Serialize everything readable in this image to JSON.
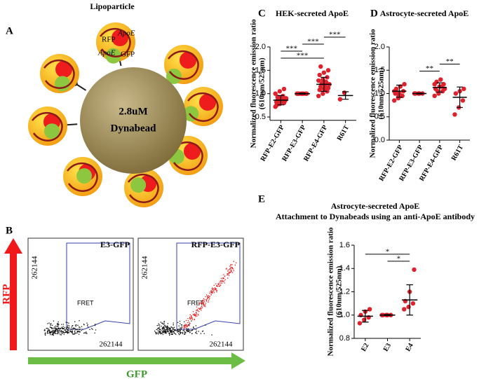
{
  "panel_labels": [
    "A",
    "B",
    "C",
    "D",
    "E"
  ],
  "diagram": {
    "title": "Lipoparticle",
    "bead_label": [
      "2.8uM",
      "Dynabead"
    ],
    "particle_labels": [
      "RFP",
      "ApoE",
      "ApoE",
      "GFP"
    ]
  },
  "flow": {
    "plots": [
      {
        "title": "E3-GFP",
        "gate": "FRET"
      },
      {
        "title": "RFP-E3-GFP",
        "gate": "FRET"
      }
    ],
    "axis_max": "262144",
    "y_axis": "RFP",
    "x_axis": "GFP"
  },
  "chart_data": [
    {
      "type": "strip",
      "title": "HEK-secreted ApoE",
      "ylabel": [
        "Normalized fluorescence emission ratio",
        "(610nm/525nm)"
      ],
      "categories": [
        "RFP-E2-GFP",
        "RFP-E3-GFP",
        "RFP-E4-GFP",
        "R61T"
      ],
      "points": [
        [
          0.72,
          0.78,
          0.8,
          0.82,
          0.84,
          0.85,
          0.86,
          0.88,
          0.9,
          0.92,
          0.95,
          1.0,
          1.05,
          1.1,
          0.75,
          0.83,
          0.87,
          0.93
        ],
        [
          1.0,
          1.0,
          1.0,
          1.0,
          1.0,
          1.0,
          1.0,
          1.0
        ],
        [
          0.95,
          1.0,
          1.05,
          1.08,
          1.1,
          1.12,
          1.15,
          1.18,
          1.2,
          1.22,
          1.25,
          1.28,
          1.3,
          1.35,
          1.4,
          1.45,
          1.5,
          1.58,
          1.1,
          1.2
        ],
        [
          0.88,
          1.02
        ]
      ],
      "means": [
        0.86,
        1.0,
        1.2,
        0.96
      ],
      "sd": [
        0.1,
        0.01,
        0.15,
        0.08
      ],
      "color": "#e0202a",
      "ylim": [
        0.43,
        2.0
      ],
      "yticks": [
        0.5,
        {
          "value": 1,
          "label": "1.0"
        },
        1.5,
        {
          "value": 2,
          "label": "2.0"
        }
      ],
      "annotations": [
        {
          "label": "***",
          "between": [
            "RFP-E2-GFP",
            "RFP-E4-GFP"
          ]
        },
        {
          "label": "***",
          "between": [
            "RFP-E2-GFP",
            "RFP-E3-GFP"
          ]
        },
        {
          "label": "***",
          "between": [
            "RFP-E3-GFP",
            "RFP-E4-GFP"
          ]
        },
        {
          "label": "***",
          "between": [
            "RFP-E4-GFP",
            "R61T"
          ]
        }
      ]
    },
    {
      "type": "strip",
      "title": "Astrocyte-secreted ApoE",
      "ylabel": [
        "Normalized fluorescence emission ratio",
        "(610nm/525nm)"
      ],
      "categories": [
        "RFP-E2-GFP",
        "RFP-E3-GFP",
        "RFP-E4-GFP",
        "R61T"
      ],
      "points": [
        [
          0.85,
          0.9,
          0.95,
          1.0,
          1.0,
          1.05,
          1.1,
          1.15,
          1.2,
          1.0,
          0.95,
          1.05,
          0.92
        ],
        [
          1.0,
          1.0,
          1.0,
          1.0,
          1.0
        ],
        [
          0.95,
          1.0,
          1.05,
          1.1,
          1.15,
          1.2,
          1.25,
          1.3,
          1.1,
          1.05,
          1.15,
          1.2
        ],
        [
          0.55,
          0.7,
          0.85,
          1.0,
          1.05,
          1.1
        ]
      ],
      "means": [
        1.05,
        1.0,
        1.13,
        0.92
      ],
      "sd": [
        0.13,
        0.01,
        0.1,
        0.22
      ],
      "color": "#e0202a",
      "ylim": [
        0,
        2.0
      ],
      "yticks": [
        {
          "value": 0,
          "label": "0.0"
        },
        0.5,
        {
          "value": 1,
          "label": "1.0"
        },
        1.5,
        {
          "value": 2,
          "label": "2.0"
        }
      ],
      "annotations": [
        {
          "label": "**",
          "between": [
            "RFP-E3-GFP",
            "RFP-E4-GFP"
          ]
        },
        {
          "label": "**",
          "between": [
            "RFP-E4-GFP",
            "R61T"
          ]
        }
      ]
    },
    {
      "type": "strip",
      "title": "Astrocyte-secreted ApoE",
      "subtitle": "Attachment to Dynabeads using an anti-ApoE antibody",
      "ylabel": [
        "Normalized fluorescence emission ratio",
        "(610nm/525nm)"
      ],
      "categories": [
        "E2",
        "E3",
        "E4"
      ],
      "points": [
        [
          0.93,
          0.96,
          0.98,
          1.0,
          1.03,
          1.05
        ],
        [
          1.0,
          1.0,
          1.0,
          1.0,
          1.0
        ],
        [
          1.05,
          1.07,
          1.1,
          1.12,
          1.2,
          1.39
        ]
      ],
      "means": [
        0.99,
        1.0,
        1.13
      ],
      "sd": [
        0.05,
        0.005,
        0.13
      ],
      "color": "#e0202a",
      "ylim": [
        0.8,
        1.6
      ],
      "yticks": [
        0.8,
        {
          "value": 1,
          "label": "1.0"
        },
        1.2,
        1.4,
        1.6
      ],
      "annotations": [
        {
          "label": "*",
          "between": [
            "E3",
            "E4"
          ]
        },
        {
          "label": "*",
          "between": [
            "E2",
            "E4"
          ]
        }
      ]
    }
  ]
}
